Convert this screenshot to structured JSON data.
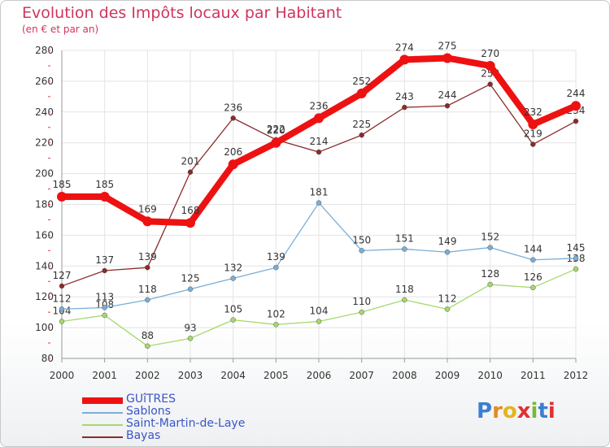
{
  "header": {
    "title": "Evolution des Impôts locaux par Habitant",
    "subtitle": "(en € et par an)"
  },
  "logo": {
    "text": "Proxiti"
  },
  "chart_data": {
    "type": "line",
    "title": "Evolution des Impôts locaux par Habitant",
    "subtitle": "(en € et par an)",
    "xlabel": "",
    "ylabel": "",
    "categories": [
      "2000",
      "2001",
      "2002",
      "2003",
      "2004",
      "2005",
      "2006",
      "2007",
      "2008",
      "2009",
      "2010",
      "2011",
      "2012"
    ],
    "ylim": [
      80,
      280
    ],
    "yticks": [
      "80",
      "100",
      "120",
      "140",
      "160",
      "180",
      "200",
      "220",
      "240",
      "260",
      "280"
    ],
    "grid": true,
    "legend": "bottom-left",
    "series": [
      {
        "name": "Bayas",
        "color": "#8b2a2a",
        "values": [
          127,
          137,
          139,
          201,
          236,
          222,
          214,
          225,
          243,
          244,
          258,
          219,
          234
        ]
      },
      {
        "name": "Saint-Martin-de-Laye",
        "color": "#a6d86e",
        "values": [
          104,
          108,
          88,
          93,
          105,
          102,
          104,
          110,
          118,
          112,
          128,
          126,
          138
        ]
      },
      {
        "name": "Sablons",
        "color": "#7aaed6",
        "values": [
          112,
          113,
          118,
          125,
          132,
          139,
          181,
          150,
          151,
          149,
          152,
          144,
          145
        ]
      },
      {
        "name": "GUîTRES",
        "color": "#ee1111",
        "values": [
          185,
          185,
          169,
          168,
          206,
          220,
          236,
          252,
          274,
          275,
          270,
          232,
          244
        ]
      }
    ],
    "legend_order": [
      "GUîTRES",
      "Sablons",
      "Saint-Martin-de-Laye",
      "Bayas"
    ]
  }
}
